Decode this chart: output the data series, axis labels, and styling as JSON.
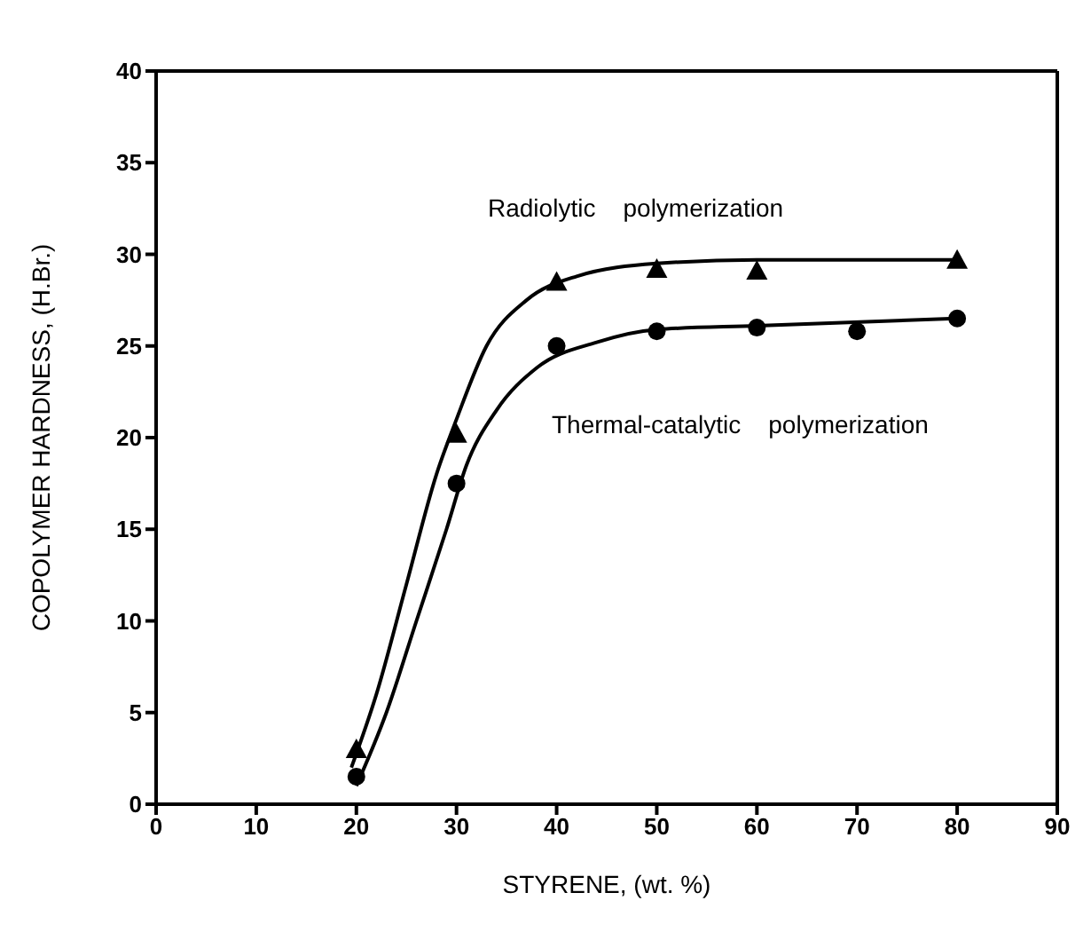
{
  "chart_data": {
    "type": "scatter",
    "xlabel": "STYRENE,  (wt. %)",
    "ylabel": "COPOLYMER  HARDNESS,  (H.Br.)",
    "xlim": [
      0,
      90
    ],
    "xticks": [
      0,
      10,
      20,
      30,
      40,
      50,
      60,
      70,
      80,
      90
    ],
    "ylim": [
      0,
      40
    ],
    "yticks": [
      0,
      5,
      10,
      15,
      20,
      25,
      30,
      35,
      40
    ],
    "legend": false,
    "series": [
      {
        "color": "#000000",
        "marker": "triangle",
        "x": [
          20,
          30,
          40,
          50,
          60,
          80
        ],
        "values": [
          3,
          20.2,
          28.5,
          29.2,
          29.1,
          29.7
        ]
      },
      {
        "color": "#000000",
        "marker": "circle",
        "x": [
          20,
          30,
          40,
          50,
          60,
          70,
          80
        ],
        "values": [
          1.5,
          17.5,
          25,
          25.8,
          26,
          25.8,
          26.5
        ]
      },
      {
        "type": "line",
        "color": "#000000",
        "marker": "none",
        "line_style": "solid",
        "x": [
          19.5,
          22,
          25,
          28,
          30,
          33,
          37,
          42,
          50,
          60,
          80
        ],
        "values": [
          2,
          6,
          12,
          18,
          21,
          25,
          27.5,
          28.8,
          29.5,
          29.7,
          29.7
        ]
      },
      {
        "type": "line",
        "color": "#000000",
        "marker": "none",
        "line_style": "solid",
        "x": [
          20,
          23,
          26,
          29,
          31,
          34,
          38,
          44,
          50,
          60,
          80
        ],
        "values": [
          1,
          5,
          10,
          15,
          18.5,
          21.5,
          23.8,
          25.2,
          25.9,
          26.1,
          26.5
        ]
      }
    ],
    "annotations": [
      "Radiolytic    polymerization",
      "Thermal-catalytic    polymerization"
    ]
  }
}
